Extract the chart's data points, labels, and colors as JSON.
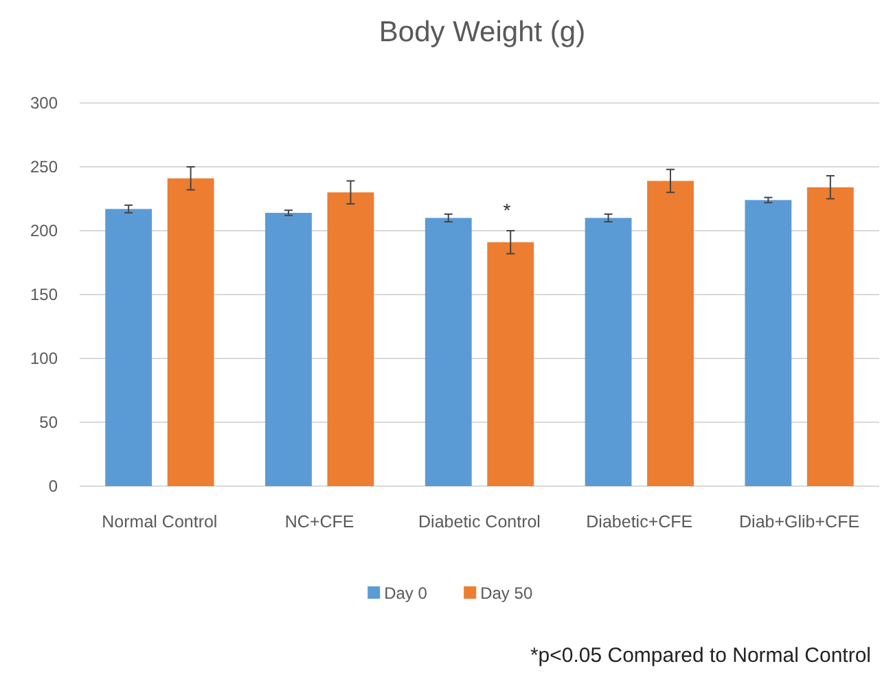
{
  "chart_data": {
    "type": "bar",
    "title": "Body Weight (g)",
    "categories": [
      "Normal Control",
      "NC+CFE",
      "Diabetic Control",
      "Diabetic+CFE",
      "Diab+Glib+CFE"
    ],
    "series": [
      {
        "name": "Day 0",
        "color": "#5b9bd5",
        "values": [
          217,
          214,
          210,
          210,
          224
        ],
        "errors": [
          3,
          2,
          3,
          3,
          2
        ]
      },
      {
        "name": "Day 50",
        "color": "#ed7d31",
        "values": [
          241,
          230,
          191,
          239,
          234
        ],
        "errors": [
          9,
          9,
          9,
          9,
          9
        ]
      }
    ],
    "ylim": [
      0,
      300
    ],
    "yticks": [
      0,
      50,
      100,
      150,
      200,
      250,
      300
    ],
    "grid": "y",
    "legend": "bottom",
    "annotations": [
      "*",
      "*p<0.05 Compared to Normal Control"
    ]
  }
}
